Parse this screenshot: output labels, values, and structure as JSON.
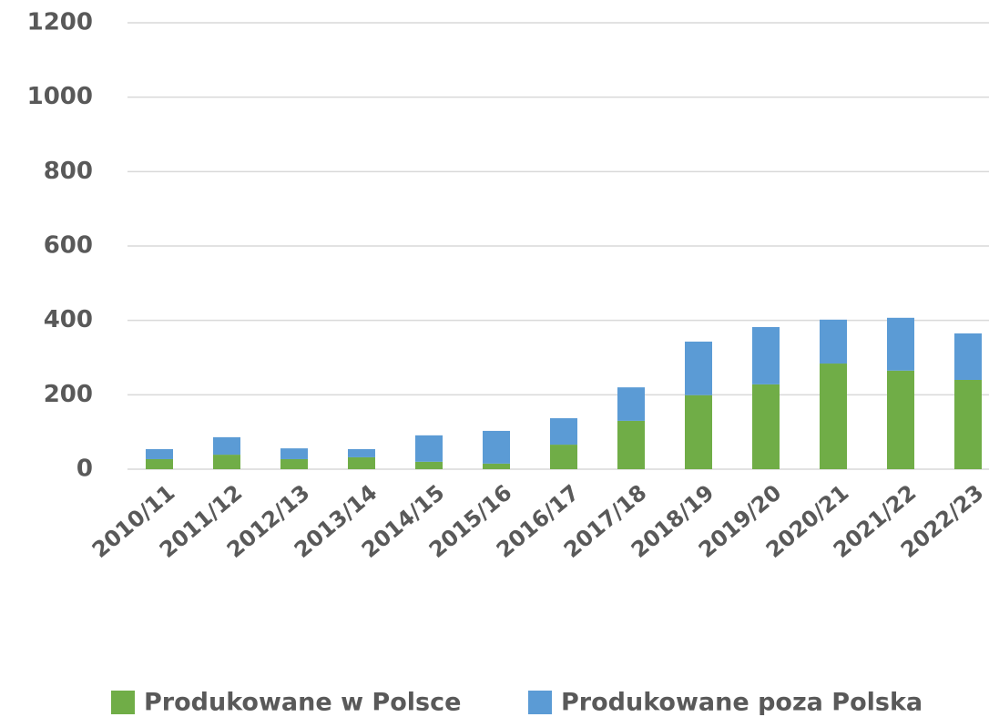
{
  "chart_data": {
    "type": "bar",
    "stacked": true,
    "categories": [
      "2010/11",
      "2011/12",
      "2012/13",
      "2013/14",
      "2014/15",
      "2015/16",
      "2016/17",
      "2017/18",
      "2018/19",
      "2019/20",
      "2020/21",
      "2021/22",
      "2022/23"
    ],
    "series": [
      {
        "name": "Produkowane w Polsce",
        "color": "#70ad47",
        "values": [
          27,
          39,
          27,
          32,
          20,
          15,
          66,
          130,
          199,
          228,
          284,
          265,
          240
        ]
      },
      {
        "name": "Produkowane poza Polska",
        "color": "#5b9bd5",
        "values": [
          27,
          47,
          29,
          22,
          71,
          88,
          71,
          90,
          144,
          154,
          118,
          142,
          125
        ]
      }
    ],
    "ylim": [
      0,
      1200
    ],
    "yticks": [
      0,
      200,
      400,
      600,
      800,
      1000,
      1200
    ],
    "grid": true,
    "legend": "bottom"
  }
}
